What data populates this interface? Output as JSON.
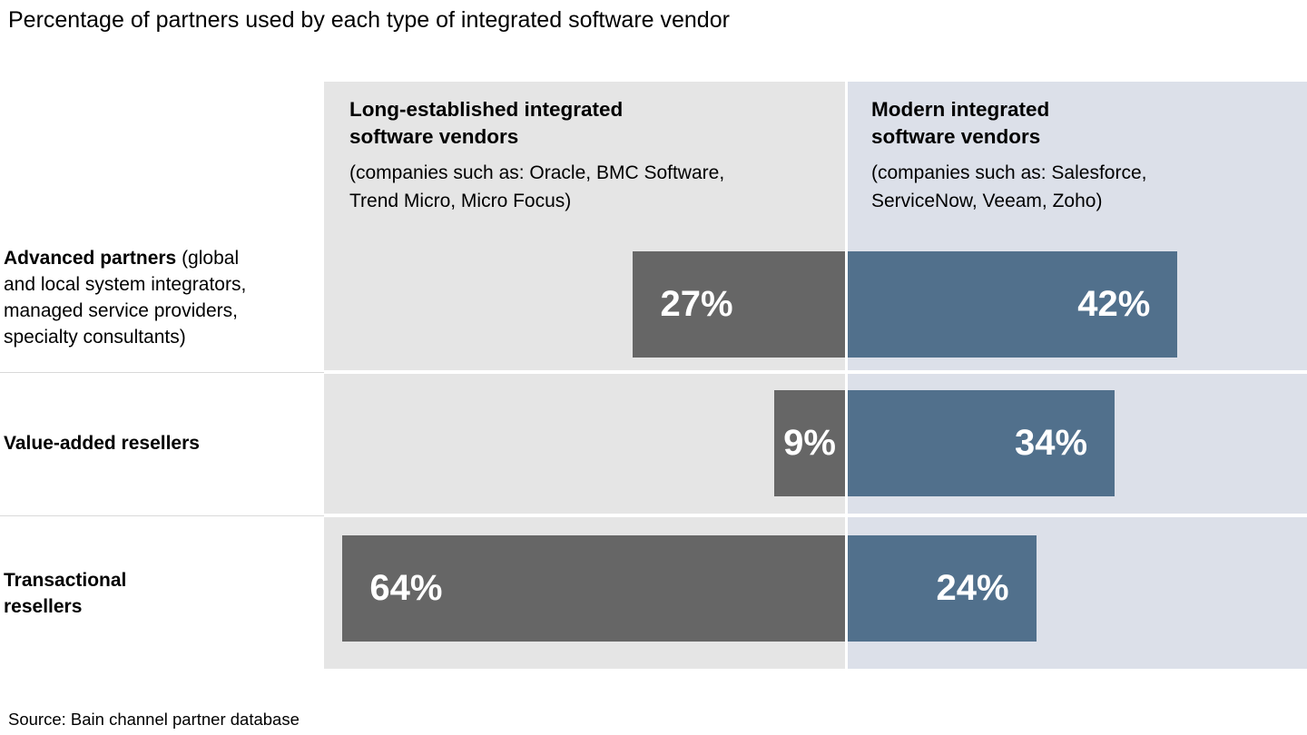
{
  "title": "Percentage of partners used by each type of integrated software vendor",
  "source": "Source: Bain channel partner database",
  "columns": [
    {
      "id": "long_established",
      "title": "Long-established integrated\nsoftware vendors",
      "subtitle": "(companies such as: Oracle, BMC Software,\nTrend Micro, Micro Focus)",
      "bar_color": "#666666",
      "panel_color": "#e5e5e5"
    },
    {
      "id": "modern",
      "title": "Modern integrated\nsoftware vendors",
      "subtitle": "(companies such as: Salesforce,\nServiceNow, Veeam, Zoho)",
      "bar_color": "#51708c",
      "panel_color": "#dce0e9"
    }
  ],
  "rows": [
    {
      "label_bold": "Advanced partners",
      "label_rest": " (global\nand local system integrators,\nmanaged service providers,\nspecialty consultants)",
      "values": {
        "left": 27,
        "right": 42
      },
      "labels": {
        "left": "27%",
        "right": "42%"
      }
    },
    {
      "label_bold": "Value-added resellers",
      "label_rest": "",
      "values": {
        "left": 9,
        "right": 34
      },
      "labels": {
        "left": "9%",
        "right": "34%"
      }
    },
    {
      "label_bold": "Transactional\nresellers",
      "label_rest": "",
      "values": {
        "left": 64,
        "right": 24
      },
      "labels": {
        "left": "64%",
        "right": "24%"
      }
    }
  ],
  "chart_data": {
    "type": "bar",
    "orientation": "horizontal-back-to-back",
    "title": "Percentage of partners used by each type of integrated software vendor",
    "categories": [
      "Advanced partners (global and local system integrators, managed service providers, specialty consultants)",
      "Value-added resellers",
      "Transactional resellers"
    ],
    "series": [
      {
        "name": "Long-established integrated software vendors (companies such as: Oracle, BMC Software, Trend Micro, Micro Focus)",
        "values": [
          27,
          9,
          64
        ],
        "color": "#666666",
        "direction": "extends left from center axis"
      },
      {
        "name": "Modern integrated software vendors (companies such as: Salesforce, ServiceNow, Veeam, Zoho)",
        "values": [
          42,
          34,
          24
        ],
        "color": "#51708c",
        "direction": "extends right from center axis"
      }
    ],
    "unit": "%",
    "value_labels_shown": true,
    "xlim": [
      0,
      66
    ],
    "grid": false,
    "legend_position": "column headers above each panel",
    "source": "Source: Bain channel partner database"
  }
}
